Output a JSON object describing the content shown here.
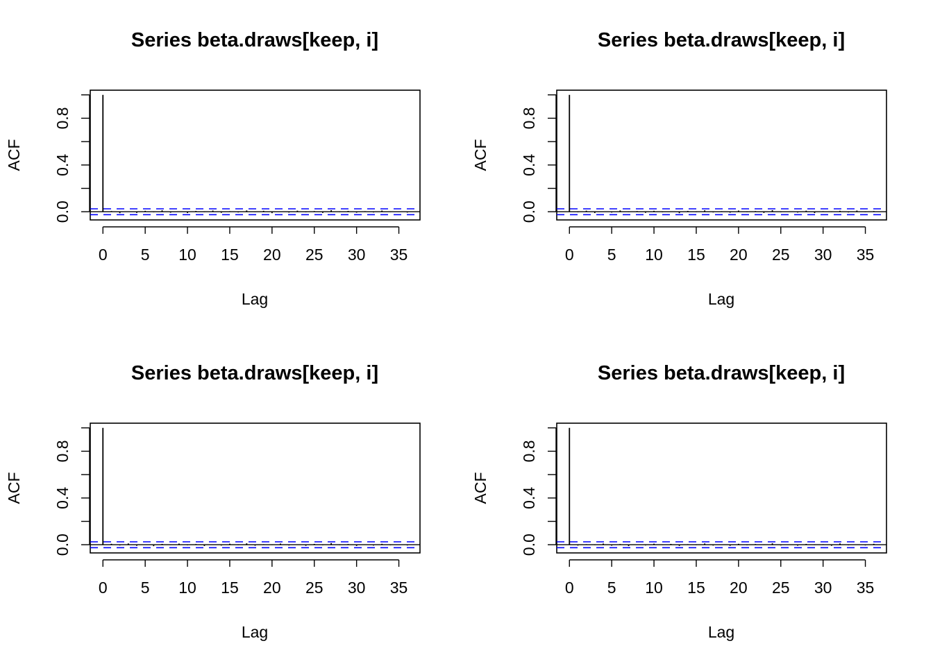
{
  "chart_data": [
    {
      "type": "bar",
      "title": "Series  beta.draws[keep, i]",
      "xlabel": "Lag",
      "ylabel": "ACF",
      "xlim": [
        -1.5,
        37.5
      ],
      "ylim": [
        -0.07,
        1.04
      ],
      "xticks": [
        "0",
        "5",
        "10",
        "15",
        "20",
        "25",
        "30",
        "35"
      ],
      "yticks": [
        "0.0",
        "0.4",
        "0.8"
      ],
      "conf_band": 0.025,
      "conf_color": "#0000ff",
      "lags": [
        0,
        1,
        2,
        3,
        4,
        5,
        6,
        7,
        8,
        9,
        10,
        11,
        12,
        13,
        14,
        15,
        16,
        17,
        18,
        19,
        20,
        21,
        22,
        23,
        24,
        25,
        26,
        27,
        28,
        29,
        30,
        31,
        32,
        33,
        34,
        35,
        36
      ],
      "acf": [
        1,
        0.006,
        -0.012,
        0.004,
        -0.01,
        0.008,
        -0.005,
        0.012,
        -0.008,
        0.003,
        -0.011,
        0.007,
        -0.004,
        0.01,
        -0.009,
        0.005,
        -0.006,
        0.011,
        -0.003,
        0.008,
        -0.012,
        0.004,
        -0.007,
        0.009,
        -0.005,
        0.006,
        -0.01,
        0.013,
        -0.004,
        0.007,
        -0.008,
        0.005,
        -0.006,
        0.01,
        -0.003,
        0.004,
        -0.007
      ]
    },
    {
      "type": "bar",
      "title": "Series  beta.draws[keep, i]",
      "xlabel": "Lag",
      "ylabel": "ACF",
      "xlim": [
        -1.5,
        37.5
      ],
      "ylim": [
        -0.07,
        1.04
      ],
      "xticks": [
        "0",
        "5",
        "10",
        "15",
        "20",
        "25",
        "30",
        "35"
      ],
      "yticks": [
        "0.0",
        "0.4",
        "0.8"
      ],
      "conf_band": 0.025,
      "conf_color": "#0000ff",
      "lags": [
        0,
        1,
        2,
        3,
        4,
        5,
        6,
        7,
        8,
        9,
        10,
        11,
        12,
        13,
        14,
        15,
        16,
        17,
        18,
        19,
        20,
        21,
        22,
        23,
        24,
        25,
        26,
        27,
        28,
        29,
        30,
        31,
        32,
        33,
        34,
        35,
        36
      ],
      "acf": [
        1,
        -0.005,
        0.009,
        -0.011,
        0.004,
        -0.007,
        0.011,
        -0.003,
        0.006,
        -0.009,
        0.008,
        -0.005,
        0.003,
        -0.012,
        0.007,
        -0.004,
        0.012,
        -0.006,
        0.005,
        -0.008,
        0.01,
        -0.004,
        0.006,
        -0.01,
        0.013,
        -0.005,
        0.004,
        -0.007,
        0.009,
        -0.011,
        0.005,
        -0.003,
        0.008,
        -0.006,
        0.01,
        -0.004,
        0.006
      ]
    },
    {
      "type": "bar",
      "title": "Series  beta.draws[keep, i]",
      "xlabel": "Lag",
      "ylabel": "ACF",
      "xlim": [
        -1.5,
        37.5
      ],
      "ylim": [
        -0.07,
        1.04
      ],
      "xticks": [
        "0",
        "5",
        "10",
        "15",
        "20",
        "25",
        "30",
        "35"
      ],
      "yticks": [
        "0.0",
        "0.4",
        "0.8"
      ],
      "conf_band": 0.025,
      "conf_color": "#0000ff",
      "lags": [
        0,
        1,
        2,
        3,
        4,
        5,
        6,
        7,
        8,
        9,
        10,
        11,
        12,
        13,
        14,
        15,
        16,
        17,
        18,
        19,
        20,
        21,
        22,
        23,
        24,
        25,
        26,
        27,
        28,
        29,
        30,
        31,
        32,
        33,
        34,
        35,
        36
      ],
      "acf": [
        1,
        0.008,
        -0.006,
        0.011,
        -0.009,
        0.004,
        -0.012,
        0.007,
        -0.003,
        0.01,
        -0.005,
        0.006,
        -0.011,
        0.003,
        -0.007,
        0.009,
        -0.004,
        0.012,
        -0.008,
        0.005,
        -0.003,
        0.01,
        -0.006,
        0.004,
        -0.009,
        0.007,
        -0.005,
        0.014,
        -0.004,
        0.006,
        -0.01,
        0.003,
        -0.007,
        0.008,
        -0.005,
        0.004,
        -0.006
      ]
    },
    {
      "type": "bar",
      "title": "Series  beta.draws[keep, i]",
      "xlabel": "Lag",
      "ylabel": "ACF",
      "xlim": [
        -1.5,
        37.5
      ],
      "ylim": [
        -0.07,
        1.04
      ],
      "xticks": [
        "0",
        "5",
        "10",
        "15",
        "20",
        "25",
        "30",
        "35"
      ],
      "yticks": [
        "0.0",
        "0.4",
        "0.8"
      ],
      "conf_band": 0.025,
      "conf_color": "#0000ff",
      "lags": [
        0,
        1,
        2,
        3,
        4,
        5,
        6,
        7,
        8,
        9,
        10,
        11,
        12,
        13,
        14,
        15,
        16,
        17,
        18,
        19,
        20,
        21,
        22,
        23,
        24,
        25,
        26,
        27,
        28,
        29,
        30,
        31,
        32,
        33,
        34,
        35,
        36
      ],
      "acf": [
        1,
        -0.007,
        0.005,
        -0.004,
        0.01,
        -0.008,
        0.006,
        -0.011,
        0.004,
        -0.006,
        0.009,
        -0.003,
        0.007,
        -0.01,
        0.005,
        -0.004,
        0.011,
        -0.007,
        0.003,
        -0.009,
        0.008,
        -0.005,
        0.006,
        -0.003,
        0.012,
        -0.006,
        0.004,
        -0.008,
        0.007,
        -0.004,
        0.005,
        -0.009,
        0.011,
        -0.005,
        0.003,
        -0.006,
        0.008
      ]
    }
  ]
}
